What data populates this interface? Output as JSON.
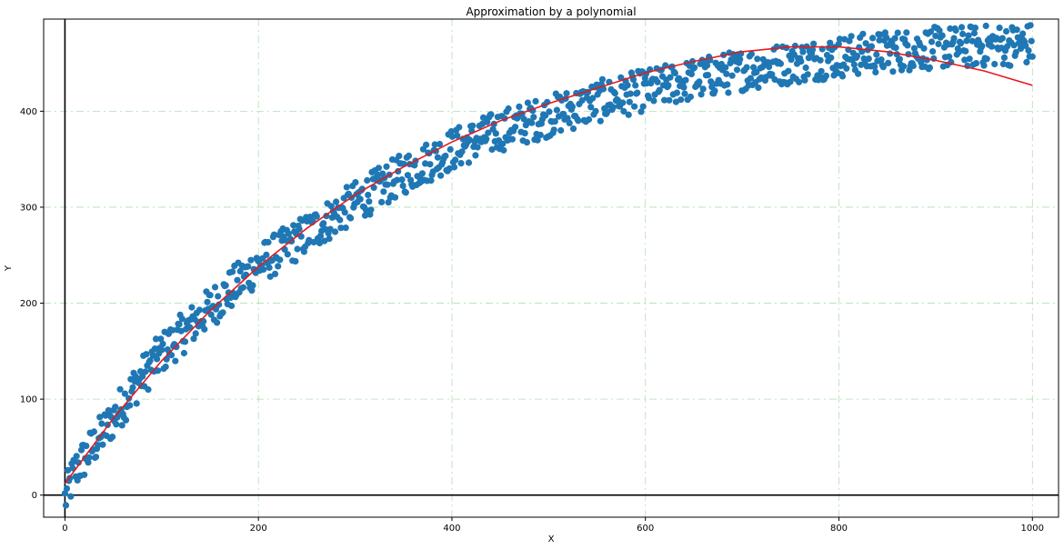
{
  "chart_data": {
    "type": "scatter",
    "title": "Approximation by a polynomial",
    "xlabel": "X",
    "ylabel": "Y",
    "xlim": [
      -22,
      1027
    ],
    "ylim": [
      -23,
      496
    ],
    "xticks": [
      0,
      200,
      400,
      600,
      800,
      1000
    ],
    "yticks": [
      0,
      100,
      200,
      300,
      400
    ],
    "grid": true,
    "grid_color": "#8fd08f",
    "axis_lines": {
      "x": 0,
      "y": 0
    },
    "series": [
      {
        "kind": "points",
        "color": "#1f77b4",
        "noise_range": [
          -22,
          22
        ],
        "sample_count": 1000,
        "x_range": [
          0,
          1000
        ],
        "trend_points": [
          [
            0,
            -5
          ],
          [
            10,
            25
          ],
          [
            25,
            45
          ],
          [
            50,
            80
          ],
          [
            75,
            118
          ],
          [
            100,
            148
          ],
          [
            150,
            195
          ],
          [
            200,
            240
          ],
          [
            250,
            272
          ],
          [
            300,
            305
          ],
          [
            350,
            335
          ],
          [
            400,
            360
          ],
          [
            450,
            380
          ],
          [
            500,
            395
          ],
          [
            550,
            410
          ],
          [
            600,
            422
          ],
          [
            650,
            433
          ],
          [
            700,
            443
          ],
          [
            750,
            450
          ],
          [
            800,
            457
          ],
          [
            850,
            462
          ],
          [
            900,
            466
          ],
          [
            950,
            468
          ],
          [
            1000,
            470
          ]
        ]
      },
      {
        "kind": "line",
        "color": "#e31a1c",
        "line_points": [
          [
            0,
            12
          ],
          [
            50,
            80
          ],
          [
            100,
            140
          ],
          [
            150,
            192
          ],
          [
            200,
            238
          ],
          [
            250,
            278
          ],
          [
            300,
            313
          ],
          [
            350,
            342
          ],
          [
            400,
            368
          ],
          [
            450,
            390
          ],
          [
            500,
            408
          ],
          [
            550,
            424
          ],
          [
            600,
            440
          ],
          [
            650,
            452
          ],
          [
            700,
            462
          ],
          [
            750,
            467
          ],
          [
            800,
            467
          ],
          [
            850,
            462
          ],
          [
            900,
            453
          ],
          [
            950,
            442
          ],
          [
            1000,
            427
          ]
        ]
      }
    ]
  }
}
